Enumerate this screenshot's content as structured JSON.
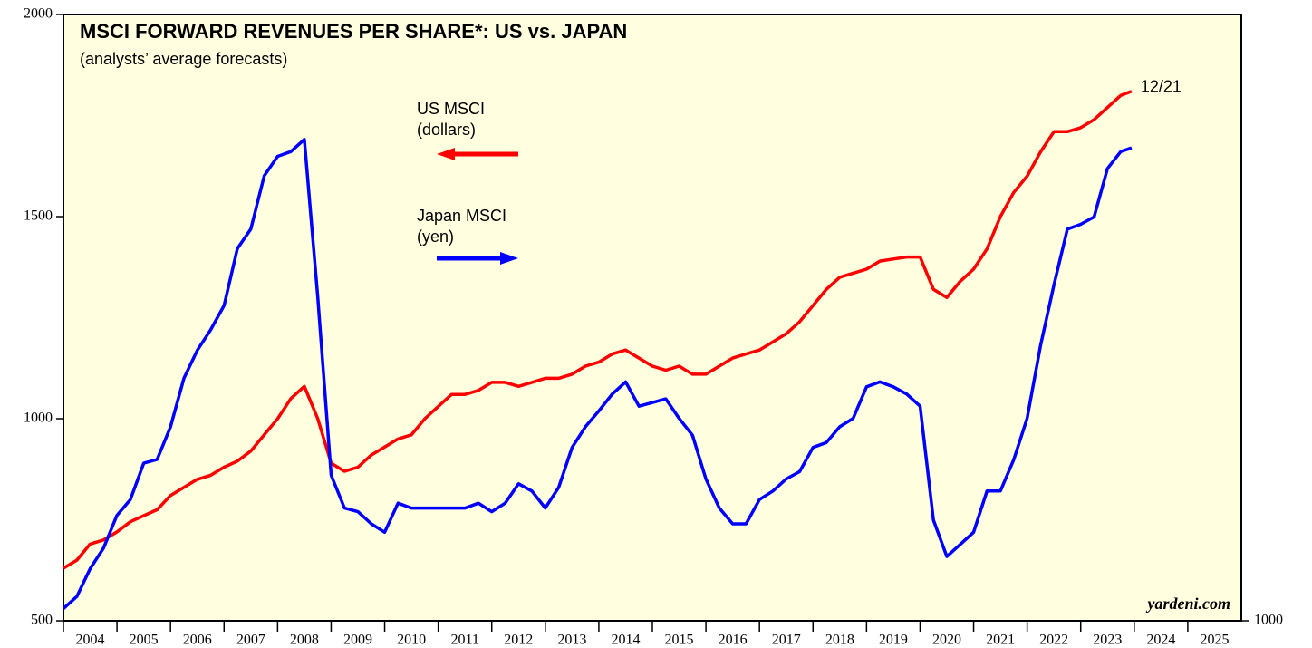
{
  "chart_data": {
    "type": "line",
    "title": "MSCI FORWARD REVENUES PER SHARE*: US vs. JAPAN",
    "subtitle": "(analysts’ average forecasts)",
    "annotations": {
      "us_unit": "(dollars)",
      "japan_unit": "(yen)",
      "end_date": "12/21",
      "source": "yardeni.com"
    },
    "x": [
      2004.0,
      2004.25,
      2004.5,
      2004.75,
      2005.0,
      2005.25,
      2005.5,
      2005.75,
      2006.0,
      2006.25,
      2006.5,
      2006.75,
      2007.0,
      2007.25,
      2007.5,
      2007.75,
      2008.0,
      2008.25,
      2008.5,
      2008.75,
      2009.0,
      2009.25,
      2009.5,
      2009.75,
      2010.0,
      2010.25,
      2010.5,
      2010.75,
      2011.0,
      2011.25,
      2011.5,
      2011.75,
      2012.0,
      2012.25,
      2012.5,
      2012.75,
      2013.0,
      2013.25,
      2013.5,
      2013.75,
      2014.0,
      2014.25,
      2014.5,
      2014.75,
      2015.0,
      2015.25,
      2015.5,
      2015.75,
      2016.0,
      2016.25,
      2016.5,
      2016.75,
      2017.0,
      2017.25,
      2017.5,
      2017.75,
      2018.0,
      2018.25,
      2018.5,
      2018.75,
      2019.0,
      2019.25,
      2019.5,
      2019.75,
      2020.0,
      2020.25,
      2020.5,
      2020.75,
      2021.0,
      2021.25,
      2021.5,
      2021.75,
      2022.0,
      2022.25,
      2022.5,
      2022.75,
      2023.0,
      2023.25,
      2023.5,
      2023.75,
      2023.95
    ],
    "series": [
      {
        "name": "US MSCI",
        "color": "#ff0000",
        "axis": "y",
        "values": [
          630,
          650,
          690,
          700,
          720,
          745,
          760,
          775,
          810,
          830,
          850,
          860,
          880,
          895,
          920,
          960,
          1000,
          1050,
          1080,
          1000,
          890,
          870,
          880,
          910,
          930,
          950,
          960,
          1000,
          1030,
          1060,
          1060,
          1070,
          1090,
          1090,
          1080,
          1090,
          1100,
          1100,
          1110,
          1130,
          1140,
          1160,
          1170,
          1150,
          1130,
          1120,
          1130,
          1110,
          1110,
          1130,
          1150,
          1160,
          1170,
          1190,
          1210,
          1240,
          1280,
          1320,
          1350,
          1360,
          1370,
          1390,
          1395,
          1400,
          1400,
          1320,
          1300,
          1340,
          1370,
          1420,
          1500,
          1560,
          1600,
          1660,
          1710,
          1710,
          1720,
          1740,
          1770,
          1800,
          1810
        ]
      },
      {
        "name": "Japan MSCI",
        "color": "#0000ff",
        "axis": "y2",
        "values": [
          1100,
          1200,
          1430,
          1600,
          1870,
          2000,
          2300,
          2330,
          2600,
          3000,
          3230,
          3400,
          3600,
          4070,
          4230,
          4670,
          4830,
          4870,
          4970,
          3670,
          2200,
          1930,
          1900,
          1800,
          1730,
          1970,
          1930,
          1930,
          1930,
          1930,
          1930,
          1970,
          1900,
          1970,
          2130,
          2070,
          1930,
          2100,
          2430,
          2600,
          2730,
          2870,
          2970,
          2770,
          2800,
          2830,
          2670,
          2530,
          2170,
          1930,
          1800,
          1800,
          2000,
          2070,
          2170,
          2230,
          2430,
          2470,
          2600,
          2670,
          2930,
          2970,
          2930,
          2870,
          2770,
          1830,
          1530,
          1630,
          1730,
          2070,
          2070,
          2330,
          2670,
          3270,
          3770,
          4230,
          4270,
          4330,
          4730,
          4870,
          4900
        ]
      }
    ],
    "xlim": [
      2004,
      2026
    ],
    "xticks": [
      2004,
      2005,
      2006,
      2007,
      2008,
      2009,
      2010,
      2011,
      2012,
      2013,
      2014,
      2015,
      2016,
      2017,
      2018,
      2019,
      2020,
      2021,
      2022,
      2023,
      2024,
      2025
    ],
    "ylim": [
      500,
      2000
    ],
    "yticks": [
      500,
      1000,
      1500,
      2000
    ],
    "y2lim": [
      1000,
      6000
    ],
    "y2ticks": [
      1000
    ],
    "background": "#ffffe0"
  }
}
